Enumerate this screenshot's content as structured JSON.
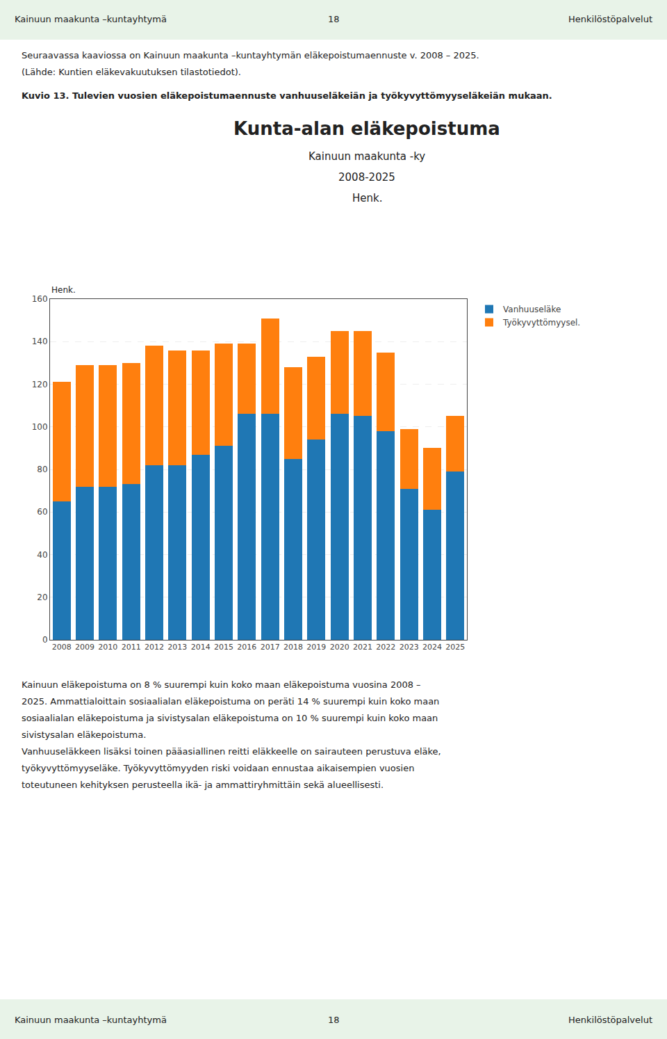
{
  "header": [
    "Kainuun maakunta –kuntayhtymä",
    "18",
    "Henkilöstöpalvelut"
  ],
  "footer": [
    "Kainuun maakunta –kuntayhtymä",
    "18",
    "Henkilöstöpalvelut"
  ],
  "intro": [
    "Seuraavassa kaaviossa on Kainuun maakunta –kuntayhtymän eläkepoistumaennuste v. 2008 – 2025.",
    "(Lähde: Kuntien eläkevakuutuksen tilastotiedot)."
  ],
  "caption": "Kuvio 13. Tulevien vuosien eläkepoistumaennuste vanhuuseläkeiän ja työkyvyttömyyseläkeiän mukaan.",
  "body": [
    "Kainuun eläkepoistuma on 8 % suurempi kuin koko maan eläkepoistuma vuosina 2008 –",
    "2025. Ammattialoittain sosiaalialan eläkepoistuma on peräti 14 % suurempi kuin koko maan",
    "sosiaalialan eläkepoistuma ja sivistysalan eläkepoistuma on 10 % suurempi kuin koko maan",
    "sivistysalan eläkepoistuma.",
    "Vanhuuseläkkeen lisäksi toinen pääasiallinen reitti eläkkeelle on sairauteen perustuva eläke,",
    "työkyvyttömyyseläke. Työkyvyttömyyden riski voidaan ennustaa aikaisempien vuosien",
    "toteutuneen kehityksen perusteella ikä- ja ammattiryhmittäin sekä alueellisesti."
  ],
  "chart_data": {
    "type": "bar",
    "title": "Kunta-alan eläkepoistuma",
    "subtitle": [
      "Kainuun maakunta -ky",
      "2008-2025",
      "Henk."
    ],
    "ylabel": "Henk.",
    "categories": [
      "2008",
      "2009",
      "2010",
      "2011",
      "2012",
      "2013",
      "2014",
      "2015",
      "2016",
      "2017",
      "2018",
      "2019",
      "2020",
      "2021",
      "2022",
      "2023",
      "2024",
      "2025"
    ],
    "series": [
      {
        "name": "Vanhuuseläke",
        "values": [
          65,
          72,
          72,
          73,
          82,
          82,
          87,
          91,
          106,
          106,
          85,
          94,
          106,
          105,
          98,
          71,
          61,
          79
        ]
      },
      {
        "name": "Työkyvyttömyysel.",
        "values": [
          56,
          57,
          57,
          57,
          56,
          54,
          49,
          48,
          33,
          45,
          43,
          39,
          39,
          40,
          37,
          28,
          29,
          26
        ]
      }
    ],
    "stacked": true,
    "ylim": [
      0,
      160
    ],
    "yticks": [
      0,
      20,
      40,
      60,
      80,
      100,
      120,
      140,
      160
    ],
    "grid": true,
    "legend": "upper right"
  }
}
